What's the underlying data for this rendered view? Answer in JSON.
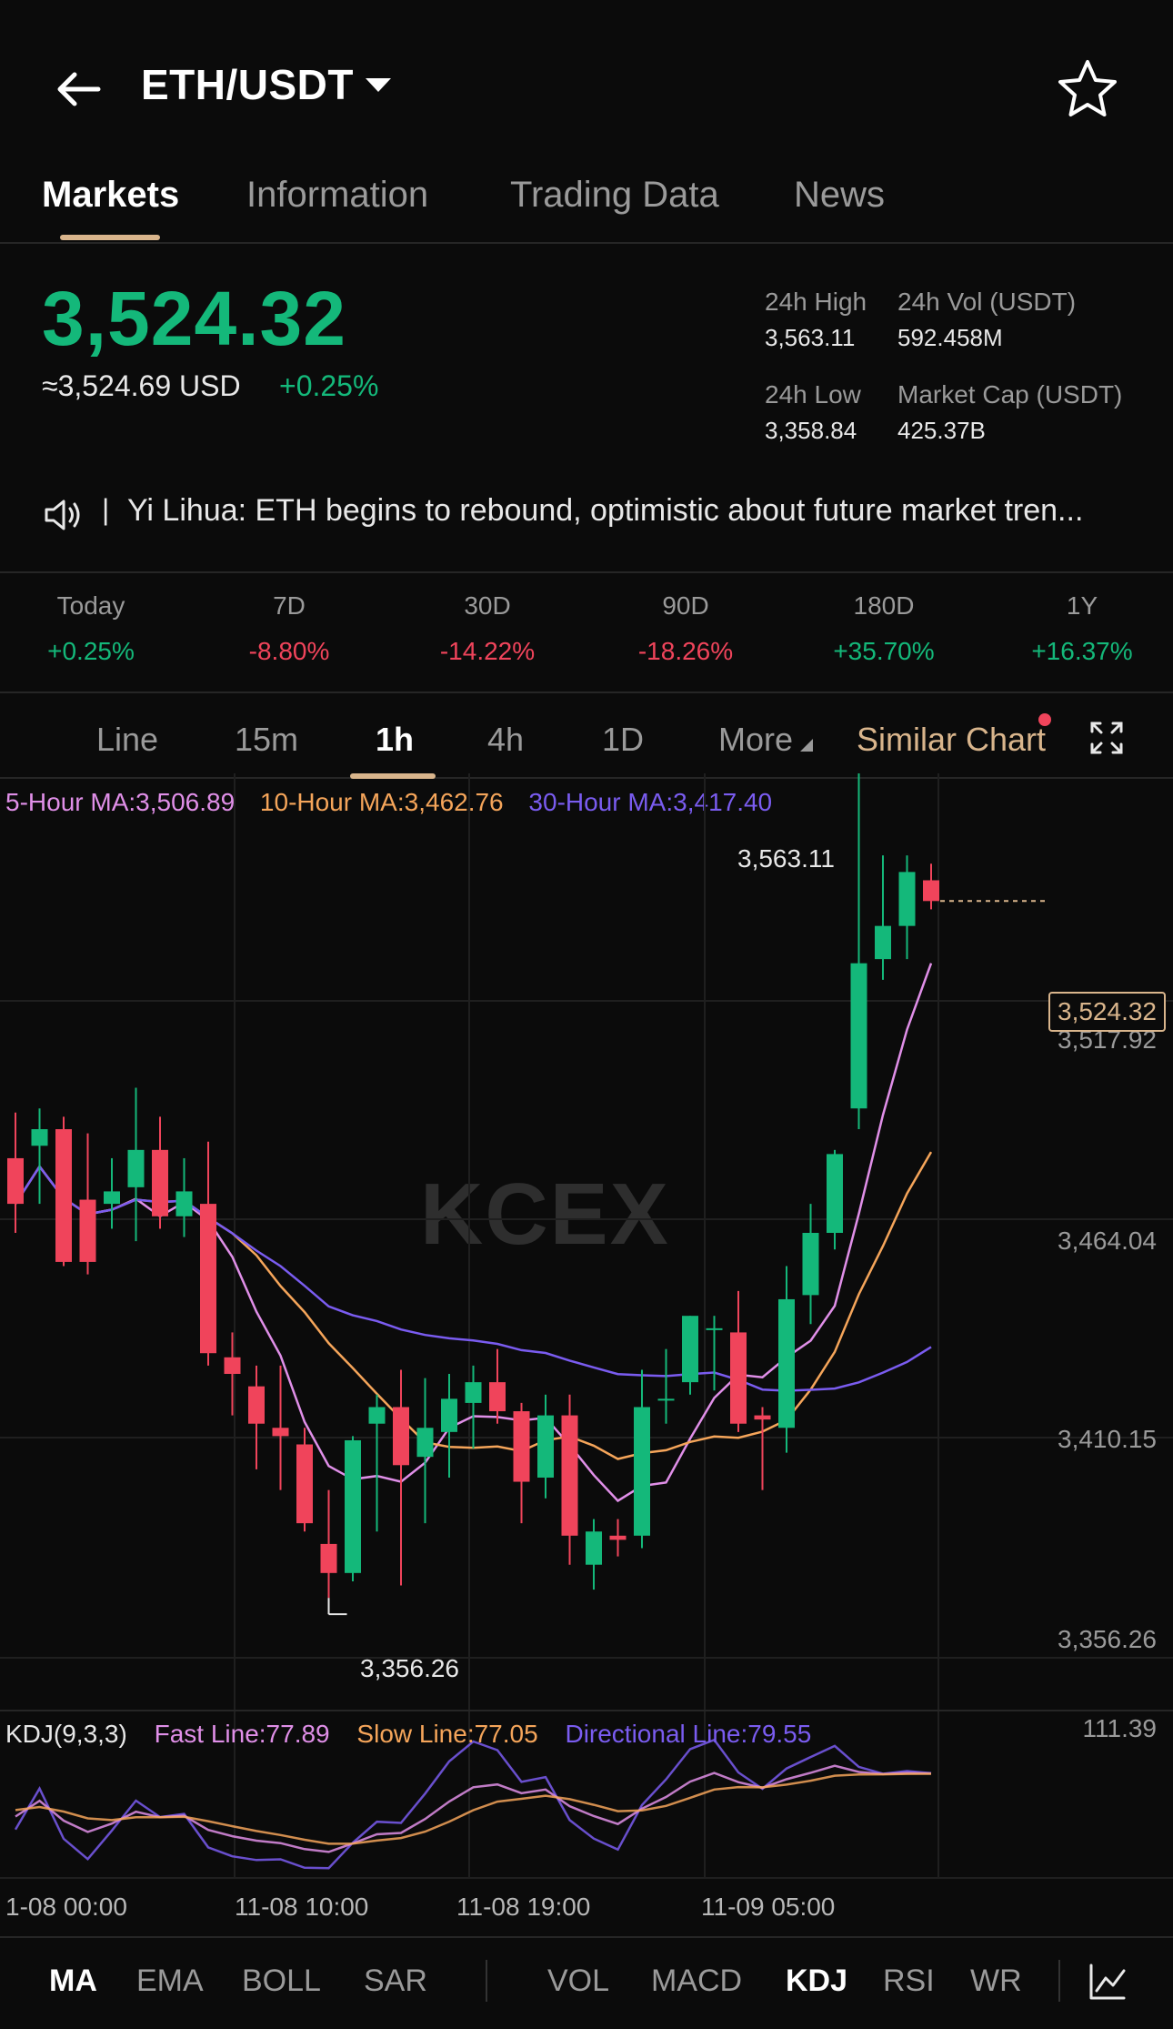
{
  "header": {
    "pair": "ETH/USDT",
    "back_icon": "arrow-left-icon",
    "favorite_icon": "star-icon"
  },
  "tabs": [
    {
      "label": "Markets",
      "active": true
    },
    {
      "label": "Information"
    },
    {
      "label": "Trading Data"
    },
    {
      "label": "News"
    }
  ],
  "ticker": {
    "price": "3,524.32",
    "usd": "≈3,524.69 USD",
    "change": "+0.25%",
    "high_label": "24h High",
    "high": "3,563.11",
    "vol_label": "24h Vol (USDT)",
    "vol": "592.458M",
    "low_label": "24h Low",
    "low": "3,358.84",
    "cap_label": "Market Cap (USDT)",
    "cap": "425.37B"
  },
  "news": {
    "sep": "|",
    "text": "Yi Lihua: ETH begins to rebound, optimistic about future market tren..."
  },
  "performance": [
    {
      "label": "Today",
      "value": "+0.25%",
      "dir": "up"
    },
    {
      "label": "7D",
      "value": "-8.80%",
      "dir": "down"
    },
    {
      "label": "30D",
      "value": "-14.22%",
      "dir": "down"
    },
    {
      "label": "90D",
      "value": "-18.26%",
      "dir": "down"
    },
    {
      "label": "180D",
      "value": "+35.70%",
      "dir": "up"
    },
    {
      "label": "1Y",
      "value": "+16.37%",
      "dir": "up"
    }
  ],
  "intervals": {
    "items": [
      "Line",
      "15m",
      "1h",
      "4h",
      "1D",
      "More"
    ],
    "active": "1h",
    "similar": "Similar Chart"
  },
  "ma_legend": {
    "ma5": "5-Hour MA:3,506.89",
    "ma10": "10-Hour MA:3,462.76",
    "ma30": "30-Hour MA:3,417.40"
  },
  "chart": {
    "y_labels": [
      "3,517.92",
      "3,464.04",
      "3,410.15",
      "3,356.26"
    ],
    "high_marker": "3,563.11",
    "low_marker": "3,356.26",
    "last_price": "3,524.32",
    "kdj_max": "111.39",
    "watermark": "KCEX",
    "x_labels": [
      "1-08 00:00",
      "11-08 10:00",
      "11-08 19:00",
      "11-09 05:00"
    ]
  },
  "kdj_legend": {
    "title": "KDJ(9,3,3)",
    "fast": "Fast Line:77.89",
    "slow": "Slow Line:77.05",
    "dir": "Directional Line:79.55"
  },
  "indicators": {
    "main": [
      "MA",
      "EMA",
      "BOLL",
      "SAR"
    ],
    "sub": [
      "VOL",
      "MACD",
      "KDJ",
      "RSI",
      "WR"
    ],
    "active_main": "MA",
    "active_sub": "KDJ"
  },
  "colors": {
    "up": "#14b87a",
    "down": "#f0445b",
    "accent": "#d9b58c",
    "ma5": "#e08fe8",
    "ma10": "#f5a55a",
    "ma30": "#7a5cf0"
  },
  "chart_data": {
    "type": "candlestick",
    "interval": "1h",
    "y_range": [
      3340,
      3575
    ],
    "candles": [
      {
        "o": 3462,
        "h": 3473,
        "l": 3444,
        "c": 3451
      },
      {
        "o": 3465,
        "h": 3474,
        "l": 3451,
        "c": 3469
      },
      {
        "o": 3469,
        "h": 3472,
        "l": 3436,
        "c": 3437
      },
      {
        "o": 3452,
        "h": 3468,
        "l": 3434,
        "c": 3437
      },
      {
        "o": 3451,
        "h": 3462,
        "l": 3445,
        "c": 3454
      },
      {
        "o": 3455,
        "h": 3479,
        "l": 3442,
        "c": 3464
      },
      {
        "o": 3464,
        "h": 3472,
        "l": 3445,
        "c": 3448
      },
      {
        "o": 3448,
        "h": 3462,
        "l": 3443,
        "c": 3454
      },
      {
        "o": 3451,
        "h": 3466,
        "l": 3412,
        "c": 3415
      },
      {
        "o": 3414,
        "h": 3420,
        "l": 3400,
        "c": 3410
      },
      {
        "o": 3407,
        "h": 3412,
        "l": 3387,
        "c": 3398
      },
      {
        "o": 3397,
        "h": 3412,
        "l": 3382,
        "c": 3395
      },
      {
        "o": 3393,
        "h": 3397,
        "l": 3372,
        "c": 3374
      },
      {
        "o": 3369,
        "h": 3382,
        "l": 3356,
        "c": 3362
      },
      {
        "o": 3362,
        "h": 3395,
        "l": 3360,
        "c": 3394
      },
      {
        "o": 3398,
        "h": 3405,
        "l": 3372,
        "c": 3402
      },
      {
        "o": 3402,
        "h": 3411,
        "l": 3359,
        "c": 3388
      },
      {
        "o": 3390,
        "h": 3409,
        "l": 3374,
        "c": 3397
      },
      {
        "o": 3396,
        "h": 3410,
        "l": 3385,
        "c": 3404
      },
      {
        "o": 3403,
        "h": 3412,
        "l": 3392,
        "c": 3408
      },
      {
        "o": 3408,
        "h": 3416,
        "l": 3398,
        "c": 3401
      },
      {
        "o": 3401,
        "h": 3403,
        "l": 3374,
        "c": 3384
      },
      {
        "o": 3385,
        "h": 3405,
        "l": 3380,
        "c": 3400
      },
      {
        "o": 3400,
        "h": 3405,
        "l": 3364,
        "c": 3371
      },
      {
        "o": 3364,
        "h": 3375,
        "l": 3358,
        "c": 3372
      },
      {
        "o": 3371,
        "h": 3375,
        "l": 3366,
        "c": 3370
      },
      {
        "o": 3371,
        "h": 3411,
        "l": 3368,
        "c": 3402
      },
      {
        "o": 3404,
        "h": 3416,
        "l": 3398,
        "c": 3404
      },
      {
        "o": 3408,
        "h": 3424,
        "l": 3405,
        "c": 3424
      },
      {
        "o": 3421,
        "h": 3424,
        "l": 3406,
        "c": 3421
      },
      {
        "o": 3420,
        "h": 3430,
        "l": 3396,
        "c": 3398
      },
      {
        "o": 3400,
        "h": 3402,
        "l": 3382,
        "c": 3399
      },
      {
        "o": 3397,
        "h": 3436,
        "l": 3391,
        "c": 3428
      },
      {
        "o": 3429,
        "h": 3451,
        "l": 3422,
        "c": 3444
      },
      {
        "o": 3444,
        "h": 3464,
        "l": 3440,
        "c": 3463
      },
      {
        "o": 3474,
        "h": 3563,
        "l": 3469,
        "c": 3509
      },
      {
        "o": 3510,
        "h": 3535,
        "l": 3505,
        "c": 3518
      },
      {
        "o": 3518,
        "h": 3535,
        "l": 3510,
        "c": 3531
      },
      {
        "o": 3529,
        "h": 3533,
        "l": 3522,
        "c": 3524
      }
    ]
  }
}
